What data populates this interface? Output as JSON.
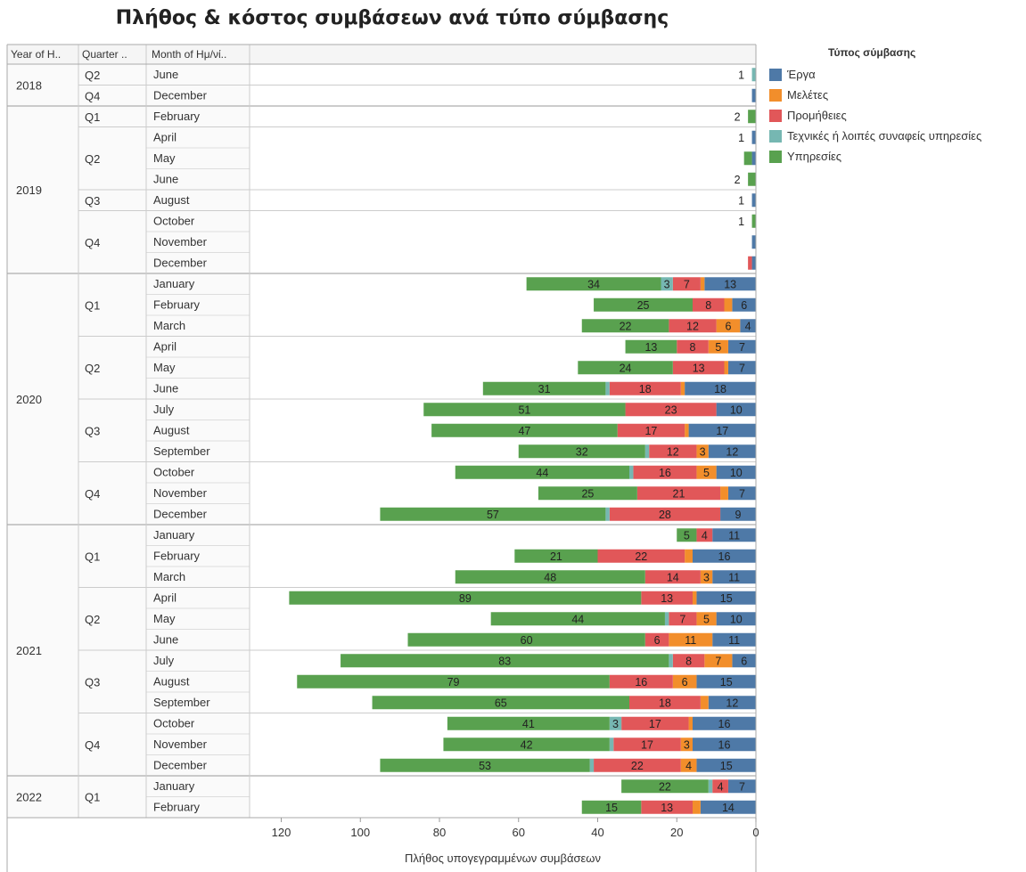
{
  "chart_data": {
    "type": "bar",
    "orientation": "horizontal-stacked",
    "title": "Πλήθος & κόστος συμβάσεων ανά τύπο σύμβασης",
    "xlabel": "Πλήθος υπογεγραμμένων συμβάσεων",
    "xlim": [
      0,
      128
    ],
    "x_ticks": [
      0,
      20,
      40,
      60,
      80,
      100,
      120
    ],
    "x_reversed": true,
    "headers": [
      "Year of H..",
      "Quarter ..",
      "Month of Ημ/νί.."
    ],
    "legend": {
      "title": "Τύπος σύμβασης",
      "placement": "right",
      "items": [
        {
          "name": "Έργα",
          "color": "#4e79a7"
        },
        {
          "name": "Μελέτες",
          "color": "#f28e2b"
        },
        {
          "name": "Προμήθειες",
          "color": "#e15759"
        },
        {
          "name": "Τεχνικές ή λοιπές συναφείς υπηρεσίες",
          "color": "#76b7b2"
        },
        {
          "name": "Υπηρεσίες",
          "color": "#59a14f"
        }
      ]
    },
    "years": [
      {
        "label": "2018",
        "quarters": [
          {
            "label": "Q2",
            "months": [
              {
                "label": "June",
                "values": [
                  0,
                  0,
                  0,
                  1,
                  0
                ]
              }
            ]
          },
          {
            "label": "Q4",
            "months": [
              {
                "label": "December",
                "values": [
                  1,
                  0,
                  0,
                  0,
                  0
                ]
              }
            ]
          }
        ]
      },
      {
        "label": "2019",
        "quarters": [
          {
            "label": "Q1",
            "months": [
              {
                "label": "February",
                "values": [
                  0,
                  0,
                  0,
                  0,
                  2
                ]
              }
            ]
          },
          {
            "label": "Q2",
            "months": [
              {
                "label": "April",
                "values": [
                  1,
                  0,
                  0,
                  0,
                  0
                ]
              },
              {
                "label": "May",
                "values": [
                  1,
                  0,
                  0,
                  0,
                  2
                ]
              },
              {
                "label": "June",
                "values": [
                  0,
                  0,
                  0,
                  0,
                  2
                ]
              }
            ]
          },
          {
            "label": "Q3",
            "months": [
              {
                "label": "August",
                "values": [
                  1,
                  0,
                  0,
                  0,
                  0
                ]
              }
            ]
          },
          {
            "label": "Q4",
            "months": [
              {
                "label": "October",
                "values": [
                  0,
                  0,
                  0,
                  0,
                  1
                ]
              },
              {
                "label": "November",
                "values": [
                  1,
                  0,
                  0,
                  0,
                  0
                ]
              },
              {
                "label": "December",
                "values": [
                  1,
                  0,
                  1,
                  0,
                  0
                ]
              }
            ]
          }
        ]
      },
      {
        "label": "2020",
        "quarters": [
          {
            "label": "Q1",
            "months": [
              {
                "label": "January",
                "values": [
                  13,
                  1,
                  7,
                  3,
                  34
                ]
              },
              {
                "label": "February",
                "values": [
                  6,
                  2,
                  8,
                  0,
                  25
                ]
              },
              {
                "label": "March",
                "values": [
                  4,
                  6,
                  12,
                  0,
                  22
                ]
              }
            ]
          },
          {
            "label": "Q2",
            "months": [
              {
                "label": "April",
                "values": [
                  7,
                  5,
                  8,
                  0,
                  13
                ]
              },
              {
                "label": "May",
                "values": [
                  7,
                  1,
                  13,
                  0,
                  24
                ]
              },
              {
                "label": "June",
                "values": [
                  18,
                  1,
                  18,
                  1,
                  31
                ]
              }
            ]
          },
          {
            "label": "Q3",
            "months": [
              {
                "label": "July",
                "values": [
                  10,
                  0,
                  23,
                  0,
                  51
                ]
              },
              {
                "label": "August",
                "values": [
                  17,
                  1,
                  17,
                  0,
                  47
                ]
              },
              {
                "label": "September",
                "values": [
                  12,
                  3,
                  12,
                  1,
                  32
                ]
              }
            ]
          },
          {
            "label": "Q4",
            "months": [
              {
                "label": "October",
                "values": [
                  10,
                  5,
                  16,
                  1,
                  44
                ]
              },
              {
                "label": "November",
                "values": [
                  7,
                  2,
                  21,
                  0,
                  25
                ]
              },
              {
                "label": "December",
                "values": [
                  9,
                  0,
                  28,
                  1,
                  57
                ]
              }
            ]
          }
        ]
      },
      {
        "label": "2021",
        "quarters": [
          {
            "label": "Q1",
            "months": [
              {
                "label": "January",
                "values": [
                  11,
                  0,
                  4,
                  0,
                  5
                ]
              },
              {
                "label": "February",
                "values": [
                  16,
                  2,
                  22,
                  0,
                  21
                ]
              },
              {
                "label": "March",
                "values": [
                  11,
                  3,
                  14,
                  0,
                  48
                ]
              }
            ]
          },
          {
            "label": "Q2",
            "months": [
              {
                "label": "April",
                "values": [
                  15,
                  1,
                  13,
                  0,
                  89
                ]
              },
              {
                "label": "May",
                "values": [
                  10,
                  5,
                  7,
                  1,
                  44
                ]
              },
              {
                "label": "June",
                "values": [
                  11,
                  11,
                  6,
                  0,
                  60
                ]
              }
            ]
          },
          {
            "label": "Q3",
            "months": [
              {
                "label": "July",
                "values": [
                  6,
                  7,
                  8,
                  1,
                  83
                ]
              },
              {
                "label": "August",
                "values": [
                  15,
                  6,
                  16,
                  0,
                  79
                ]
              },
              {
                "label": "September",
                "values": [
                  12,
                  2,
                  18,
                  0,
                  65
                ]
              }
            ]
          },
          {
            "label": "Q4",
            "months": [
              {
                "label": "October",
                "values": [
                  16,
                  1,
                  17,
                  3,
                  41
                ]
              },
              {
                "label": "November",
                "values": [
                  16,
                  3,
                  17,
                  1,
                  42
                ]
              },
              {
                "label": "December",
                "values": [
                  15,
                  4,
                  22,
                  1,
                  53
                ]
              }
            ]
          }
        ]
      },
      {
        "label": "2022",
        "quarters": [
          {
            "label": "Q1",
            "months": [
              {
                "label": "January",
                "values": [
                  7,
                  0,
                  4,
                  1,
                  22
                ]
              },
              {
                "label": "February",
                "values": [
                  14,
                  2,
                  13,
                  0,
                  15
                ]
              }
            ]
          }
        ]
      }
    ]
  }
}
